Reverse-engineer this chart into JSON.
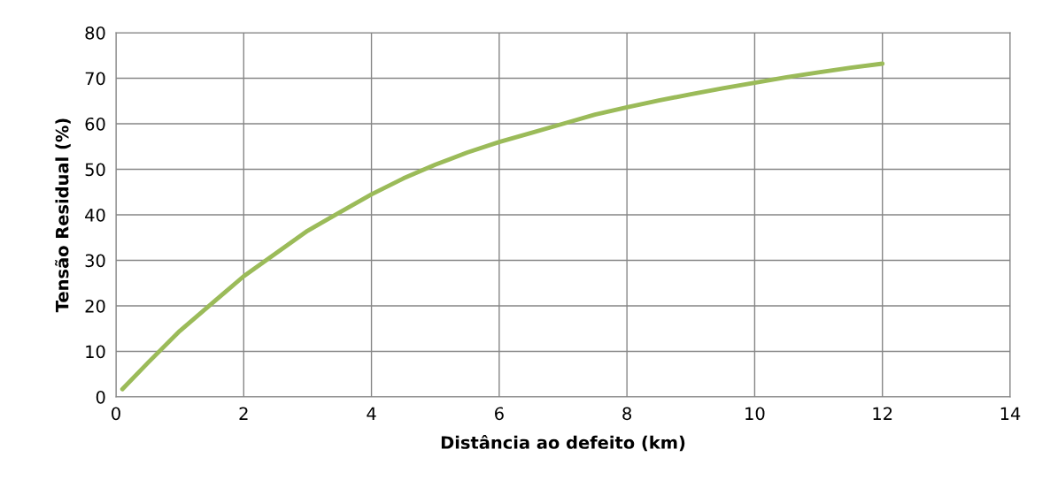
{
  "chart_data": {
    "type": "line",
    "xlabel": "Distância ao defeito (km)",
    "ylabel": "Tensão Residual (%)",
    "xlim": [
      0,
      14
    ],
    "xticks": [
      0,
      2,
      4,
      6,
      8,
      10,
      12,
      14
    ],
    "ylim": [
      0,
      80
    ],
    "yticks": [
      0,
      10,
      20,
      30,
      40,
      50,
      60,
      70,
      80
    ],
    "grid": true,
    "marker": "none",
    "line_style": "solid",
    "x": [
      0.1,
      0.5,
      1,
      1.5,
      2,
      2.5,
      3,
      3.5,
      4,
      4.5,
      5,
      5.5,
      6,
      6.5,
      7,
      7.5,
      8,
      8.5,
      9,
      9.5,
      10,
      10.5,
      11,
      11.5,
      12
    ],
    "series": [
      {
        "color": "#9bbb59",
        "values": [
          1.7,
          7.5,
          14.5,
          20.5,
          26.5,
          31.5,
          36.5,
          40.5,
          44.5,
          48,
          51,
          53.7,
          56,
          58,
          60,
          62,
          63.6,
          65.1,
          66.5,
          67.8,
          69,
          70.2,
          71.3,
          72.3,
          73.2
        ]
      }
    ]
  }
}
